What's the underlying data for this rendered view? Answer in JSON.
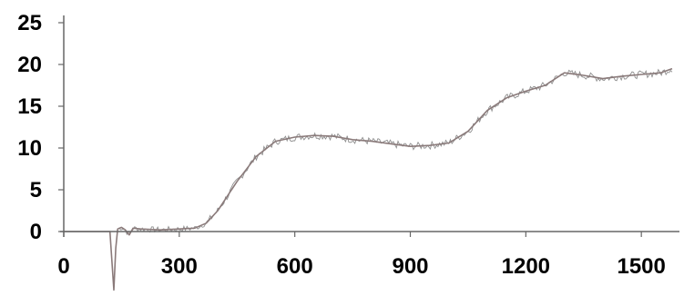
{
  "chart_data": {
    "type": "line",
    "title": "",
    "xlabel": "",
    "ylabel": "",
    "xlim": [
      0,
      1580
    ],
    "ylim": [
      0,
      25
    ],
    "x_ticks": [
      0,
      300,
      600,
      900,
      1200,
      1500
    ],
    "x_tick_labels": [
      "0",
      "300",
      "600",
      "900",
      "1200",
      "1500"
    ],
    "y_ticks": [
      0,
      5,
      10,
      15,
      20,
      25
    ],
    "y_tick_labels": [
      "0",
      "5",
      "10",
      "15",
      "20",
      "25"
    ],
    "grid": false,
    "legend": "none",
    "series": [
      {
        "color": "#8a7a7a",
        "noise_color": "#7a7a7a",
        "x": [
          0,
          120,
          130,
          135,
          140,
          150,
          160,
          170,
          180,
          200,
          250,
          300,
          340,
          370,
          400,
          450,
          500,
          550,
          600,
          650,
          700,
          750,
          800,
          850,
          900,
          950,
          1000,
          1050,
          1100,
          1150,
          1200,
          1250,
          1300,
          1350,
          1400,
          1450,
          1500,
          1550,
          1580
        ],
        "y": [
          0,
          0,
          -7.0,
          -2.0,
          0.3,
          0.5,
          0.2,
          -0.4,
          0.4,
          0.3,
          0.2,
          0.3,
          0.4,
          1.0,
          2.5,
          6.0,
          9.0,
          10.8,
          11.3,
          11.5,
          11.4,
          11.0,
          10.8,
          10.5,
          10.2,
          10.3,
          10.6,
          12.0,
          14.5,
          16.0,
          16.8,
          17.5,
          19.0,
          18.7,
          18.3,
          18.6,
          18.8,
          19.0,
          19.5
        ]
      }
    ]
  }
}
